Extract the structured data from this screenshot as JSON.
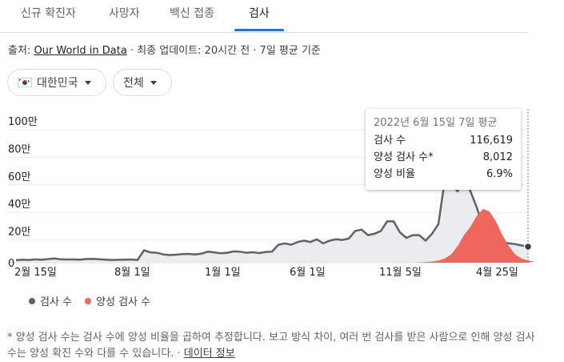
{
  "tabs": [
    "신규 확진자",
    "사망자",
    "백신 접종",
    "검사"
  ],
  "active_tab": 3,
  "source": {
    "prefix": "출처: ",
    "link": "Our World in Data",
    "suffix": " · 최종 업데이트: 20시간 전 · 7일 평균 기준"
  },
  "filters": {
    "country": "대한민국",
    "region": "전체"
  },
  "tooltip": {
    "title": "2022년 6월 15일 7일 평균",
    "rows": [
      {
        "label": "검사 수",
        "value": "116,619"
      },
      {
        "label": "양성 검사 수*",
        "value": "8,012"
      },
      {
        "label": "양성 비율",
        "value": "6.9%"
      }
    ]
  },
  "legend": [
    {
      "label": "검사 수",
      "color": "#5f6368"
    },
    {
      "label": "양성 검사 수",
      "color": "#ee675c"
    }
  ],
  "footnote": {
    "text": "* 양성 검사 수는 검사 수에 양성 비율을 곱하여 추정합니다. 보고 방식 차이, 여러 번 검사를 받은 사람으로 인해 양성 검사 수는 양성 확진 수와 다를 수 있습니다. · ",
    "link": "데이터 정보"
  },
  "chart_data": {
    "type": "area",
    "y_ticks": [
      "0",
      "20만",
      "40만",
      "60만",
      "80만",
      "100만"
    ],
    "x_ticks": [
      "2월 15일",
      "8월 1일",
      "1월 1일",
      "6월 1일",
      "11월 5일",
      "4월 25일"
    ],
    "ylim": [
      0,
      1000000
    ],
    "series": [
      {
        "name": "검사 수",
        "color": "#5f6368",
        "values": [
          18000,
          22000,
          20000,
          24000,
          21000,
          26000,
          30000,
          25000,
          23000,
          24000,
          22000,
          27000,
          28000,
          25000,
          22000,
          20000,
          21000,
          22000,
          23000,
          20000,
          90000,
          75000,
          72000,
          60000,
          55000,
          58000,
          62000,
          64000,
          60000,
          66000,
          80000,
          75000,
          68000,
          72000,
          82000,
          80000,
          72000,
          76000,
          70000,
          78000,
          80000,
          130000,
          140000,
          130000,
          150000,
          160000,
          150000,
          170000,
          140000,
          160000,
          170000,
          165000,
          175000,
          230000,
          240000,
          200000,
          210000,
          230000,
          300000,
          300000,
          220000,
          180000,
          200000,
          200000,
          160000,
          210000,
          280000,
          600000,
          560000,
          520000,
          600000,
          520000,
          400000,
          260000,
          160000,
          130000,
          150000,
          140000,
          135000,
          125000,
          116619
        ]
      },
      {
        "name": "양성 검사 수",
        "color": "#ee675c",
        "values": [
          0,
          0,
          0,
          0,
          0,
          0,
          0,
          0,
          0,
          0,
          0,
          0,
          0,
          0,
          0,
          0,
          0,
          0,
          0,
          0,
          0,
          0,
          0,
          0,
          0,
          0,
          0,
          0,
          0,
          0,
          0,
          0,
          0,
          0,
          0,
          0,
          0,
          0,
          0,
          0,
          0,
          0,
          0,
          0,
          0,
          0,
          0,
          0,
          0,
          0,
          0,
          0,
          0,
          0,
          0,
          0,
          0,
          0,
          0,
          0,
          0,
          0,
          0,
          2000,
          4000,
          8000,
          15000,
          30000,
          60000,
          120000,
          200000,
          260000,
          340000,
          390000,
          370000,
          300000,
          200000,
          120000,
          60000,
          30000,
          15000,
          8012
        ]
      }
    ]
  }
}
